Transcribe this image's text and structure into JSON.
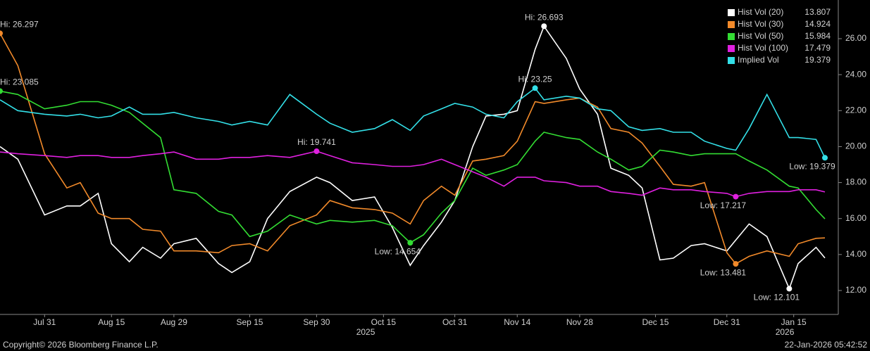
{
  "chart_data": {
    "type": "line",
    "x": [
      "2025-07-21",
      "2025-07-25",
      "2025-07-31",
      "2025-08-05",
      "2025-08-08",
      "2025-08-12",
      "2025-08-15",
      "2025-08-19",
      "2025-08-22",
      "2025-08-26",
      "2025-08-29",
      "2025-09-03",
      "2025-09-08",
      "2025-09-11",
      "2025-09-15",
      "2025-09-19",
      "2025-09-24",
      "2025-09-30",
      "2025-10-03",
      "2025-10-08",
      "2025-10-13",
      "2025-10-17",
      "2025-10-21",
      "2025-10-24",
      "2025-10-28",
      "2025-10-31",
      "2025-11-04",
      "2025-11-07",
      "2025-11-11",
      "2025-11-14",
      "2025-11-18",
      "2025-11-20",
      "2025-11-25",
      "2025-11-28",
      "2025-12-02",
      "2025-12-05",
      "2025-12-09",
      "2025-12-12",
      "2025-12-16",
      "2025-12-19",
      "2025-12-23",
      "2025-12-26",
      "2025-12-31",
      "2026-01-02",
      "2026-01-05",
      "2026-01-09",
      "2026-01-14",
      "2026-01-16",
      "2026-01-20",
      "2026-01-22"
    ],
    "xlim": [
      "2025-07-21",
      "2026-01-25"
    ],
    "xticks": [
      {
        "value": "2025-07-31",
        "label": "Jul 31"
      },
      {
        "value": "2025-08-15",
        "label": "Aug 15"
      },
      {
        "value": "2025-08-29",
        "label": "Aug 29"
      },
      {
        "value": "2025-09-15",
        "label": "Sep 15"
      },
      {
        "value": "2025-09-30",
        "label": "Sep 30"
      },
      {
        "value": "2025-10-15",
        "label": "Oct 15"
      },
      {
        "value": "2025-10-31",
        "label": "Oct 31"
      },
      {
        "value": "2025-11-14",
        "label": "Nov 14"
      },
      {
        "value": "2025-11-28",
        "label": "Nov 28"
      },
      {
        "value": "2025-12-15",
        "label": "Dec 15"
      },
      {
        "value": "2025-12-31",
        "label": "Dec 31"
      },
      {
        "value": "2026-01-15",
        "label": "Jan 15"
      }
    ],
    "x_year_labels": [
      "2025",
      "2026"
    ],
    "ylim": [
      10.67,
      28.15
    ],
    "yticks": [
      {
        "value": 12,
        "label": "12.00"
      },
      {
        "value": 14,
        "label": "14.00"
      },
      {
        "value": 16,
        "label": "16.00"
      },
      {
        "value": 18,
        "label": "18.00"
      },
      {
        "value": 20,
        "label": "20.00"
      },
      {
        "value": 22,
        "label": "22.00"
      },
      {
        "value": 24,
        "label": "24.00"
      },
      {
        "value": 26,
        "label": "26.00"
      }
    ],
    "grid": false,
    "legend": "top-right",
    "series": [
      {
        "name": "Hist Vol (20)",
        "color": "#ffffff",
        "values": [
          20.0,
          19.3,
          16.2,
          16.7,
          16.7,
          17.4,
          14.6,
          13.6,
          14.4,
          13.8,
          14.6,
          14.9,
          13.5,
          13.0,
          13.6,
          16.0,
          17.5,
          18.3,
          18.0,
          17.0,
          17.2,
          15.5,
          13.4,
          14.5,
          15.8,
          17.0,
          20.0,
          21.7,
          21.8,
          22.0,
          25.4,
          26.693,
          24.9,
          23.2,
          21.8,
          18.8,
          18.4,
          17.7,
          13.7,
          13.8,
          14.5,
          14.6,
          14.2,
          14.8,
          15.7,
          15.0,
          12.101,
          13.5,
          14.4,
          13.807
        ],
        "annotations": [
          {
            "x": "2025-11-20",
            "value": 26.693,
            "label": "Hi: 26.693"
          },
          {
            "x": "2026-01-14",
            "value": 12.101,
            "label": "Low: 12.101"
          }
        ]
      },
      {
        "name": "Hist Vol (30)",
        "color": "#f28a2a",
        "values": [
          26.297,
          24.5,
          19.6,
          17.7,
          18.0,
          16.3,
          16.0,
          16.0,
          15.4,
          15.3,
          14.2,
          14.2,
          14.1,
          14.5,
          14.6,
          14.2,
          15.6,
          16.2,
          17.0,
          16.6,
          16.5,
          16.3,
          15.7,
          17.0,
          17.8,
          17.3,
          19.2,
          19.3,
          19.5,
          20.3,
          22.5,
          22.4,
          22.6,
          22.7,
          22.2,
          21.0,
          20.8,
          20.2,
          18.9,
          17.9,
          17.8,
          18.0,
          14.1,
          13.481,
          13.9,
          14.2,
          13.9,
          14.6,
          14.9,
          14.924
        ],
        "annotations": [
          {
            "x": "2025-07-21",
            "value": 26.297,
            "label": "Hi: 26.297"
          },
          {
            "x": "2026-01-02",
            "value": 13.481,
            "label": "Low: 13.481"
          }
        ]
      },
      {
        "name": "Hist Vol (50)",
        "color": "#33dd33",
        "values": [
          23.085,
          22.9,
          22.1,
          22.3,
          22.5,
          22.5,
          22.3,
          21.9,
          21.3,
          20.5,
          17.6,
          17.4,
          16.4,
          16.2,
          15.0,
          15.3,
          16.2,
          15.7,
          15.9,
          15.8,
          15.9,
          15.6,
          14.654,
          15.1,
          16.3,
          17.0,
          18.8,
          18.4,
          18.7,
          19.0,
          20.3,
          20.8,
          20.5,
          20.4,
          19.7,
          19.3,
          18.7,
          18.9,
          19.8,
          19.7,
          19.5,
          19.6,
          19.6,
          19.6,
          19.2,
          18.7,
          17.8,
          17.7,
          16.5,
          15.984
        ],
        "annotations": [
          {
            "x": "2025-07-21",
            "value": 23.085,
            "label": "Hi: 23.085"
          },
          {
            "x": "2025-10-21",
            "value": 14.654,
            "label": "Low: 14.654"
          }
        ]
      },
      {
        "name": "Hist Vol (100)",
        "color": "#e020e0",
        "values": [
          19.7,
          19.6,
          19.5,
          19.4,
          19.5,
          19.5,
          19.4,
          19.4,
          19.5,
          19.6,
          19.7,
          19.3,
          19.3,
          19.4,
          19.4,
          19.5,
          19.4,
          19.741,
          19.5,
          19.1,
          19.0,
          18.9,
          18.9,
          19.0,
          19.3,
          19.0,
          18.6,
          18.3,
          17.8,
          18.3,
          18.3,
          18.1,
          18.0,
          17.8,
          17.8,
          17.5,
          17.4,
          17.3,
          17.7,
          17.6,
          17.6,
          17.5,
          17.4,
          17.217,
          17.4,
          17.5,
          17.5,
          17.6,
          17.6,
          17.479
        ],
        "annotations": [
          {
            "x": "2025-09-30",
            "value": 19.741,
            "label": "Hi: 19.741"
          },
          {
            "x": "2026-01-02",
            "value": 17.217,
            "label": "Low: 17.217"
          }
        ]
      },
      {
        "name": "Implied Vol",
        "color": "#33e0e8",
        "values": [
          22.6,
          22.0,
          21.8,
          21.7,
          21.8,
          21.6,
          21.7,
          22.2,
          21.8,
          21.8,
          21.9,
          21.6,
          21.4,
          21.2,
          21.4,
          21.2,
          22.9,
          21.8,
          21.3,
          20.8,
          21.0,
          21.5,
          20.9,
          21.7,
          22.1,
          22.4,
          22.2,
          21.8,
          21.6,
          22.5,
          23.25,
          22.6,
          22.8,
          22.7,
          22.1,
          22.0,
          21.1,
          20.9,
          21.0,
          20.8,
          20.8,
          20.3,
          19.9,
          19.8,
          21.0,
          22.9,
          20.5,
          20.5,
          20.4,
          19.379
        ],
        "annotations": [
          {
            "x": "2025-11-18",
            "value": 23.25,
            "label": "Hi: 23.25"
          },
          {
            "x": "2026-01-22",
            "value": 19.379,
            "label": "Low: 19.379"
          }
        ]
      }
    ],
    "footer": {
      "left": "Copyright© 2026 Bloomberg Finance L.P.",
      "right": "22-Jan-2026 05:42:52"
    }
  }
}
